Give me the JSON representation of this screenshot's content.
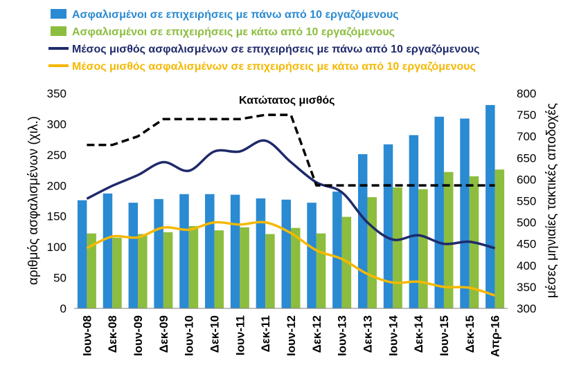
{
  "chart_data": {
    "type": "bar",
    "title": "",
    "categories": [
      "Ιουν-08",
      "Δεκ-08",
      "Ιουν-09",
      "Δεκ-09",
      "Ιουν-10",
      "Δεκ-10",
      "Ιουν-11",
      "Δεκ-11",
      "Ιουν-12",
      "Δεκ-12",
      "Ιουν-13",
      "Δεκ-13",
      "Ιουν-14",
      "Δεκ-14",
      "Ιουν-15",
      "Δεκ-15",
      "Απρ-16"
    ],
    "ylabel": "αριθμός ασφαλισμένων (χιλ.)",
    "y2label": "μέσες μηνιαίες τακτικές αποδοχές",
    "ylim": [
      0,
      350
    ],
    "y2lim": [
      300,
      800
    ],
    "yticks": [
      0,
      50,
      100,
      150,
      200,
      250,
      300,
      350
    ],
    "y2ticks": [
      300,
      350,
      400,
      450,
      500,
      550,
      600,
      650,
      700,
      750,
      800
    ],
    "legend_position": "top",
    "series": [
      {
        "name": "Ασφαλισμένοι σε επιχειρήσεις με πάνω από 10 εργαζόμενους",
        "type": "bar",
        "axis": "left",
        "color": "#2a8ad2",
        "values": [
          176,
          187,
          172,
          178,
          186,
          186,
          185,
          179,
          177,
          172,
          190,
          251,
          267,
          282,
          312,
          309,
          331
        ]
      },
      {
        "name": "Ασφαλισμένοι σε επιχειρήσεις με κάτω από 10 εργαζόμενους",
        "type": "bar",
        "axis": "left",
        "color": "#8cbd3f",
        "values": [
          122,
          115,
          121,
          124,
          134,
          127,
          132,
          121,
          131,
          122,
          149,
          181,
          197,
          194,
          222,
          215,
          226
        ]
      },
      {
        "name": "Μέσος μισθός ασφαλισμένων σε επιχειρήσεις με πάνω από 10 εργαζόμενους",
        "type": "line",
        "axis": "right",
        "color": "#1f2a6b",
        "values": [
          555,
          585,
          610,
          640,
          620,
          665,
          665,
          690,
          640,
          593,
          570,
          500,
          460,
          470,
          450,
          455,
          440
        ]
      },
      {
        "name": "Μέσος μισθός ασφαλισμένων σε επιχειρήσεις με κάτω από 10 εργαζόμενους",
        "type": "line",
        "axis": "right",
        "color": "#f5b800",
        "values": [
          440,
          467,
          465,
          488,
          483,
          500,
          495,
          500,
          475,
          435,
          415,
          380,
          360,
          362,
          350,
          348,
          330
        ]
      },
      {
        "name": "Κατώτατος μισθός",
        "type": "line",
        "axis": "right",
        "color": "#000000",
        "dash": true,
        "values": [
          680,
          680,
          700,
          740,
          740,
          740,
          740,
          750,
          750,
          586,
          586,
          586,
          586,
          586,
          586,
          586,
          586
        ]
      }
    ],
    "annotations": [
      "Κατώτατος μισθός"
    ]
  }
}
